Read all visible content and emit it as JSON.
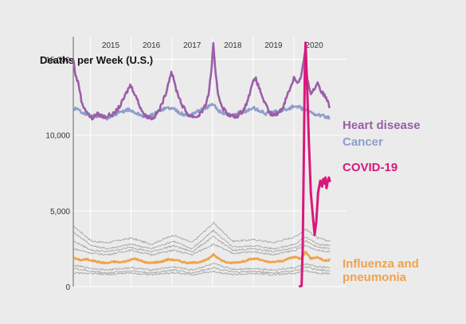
{
  "chart_data": {
    "type": "line",
    "title": "",
    "ylabel": "Deaths per Week (U.S.)",
    "xlabel": "",
    "x_range": [
      "2014-08-01",
      "2020-12-31"
    ],
    "ylim": [
      0,
      16500
    ],
    "year_ticks": [
      "2015",
      "2016",
      "2017",
      "2018",
      "2019",
      "2020"
    ],
    "y_ticks": [
      {
        "value": 0,
        "label": "0"
      },
      {
        "value": 5000,
        "label": "5,000"
      },
      {
        "value": 10000,
        "label": "10,000"
      },
      {
        "value": 15000,
        "label": "15,000"
      }
    ],
    "grid": true,
    "series": [
      {
        "name": "Heart disease",
        "color": "#9b5ea8",
        "points": [
          [
            "2014-08-01",
            15000
          ],
          [
            "2014-08-20",
            14000
          ],
          [
            "2014-09-20",
            13300
          ],
          [
            "2014-10-20",
            12000
          ],
          [
            "2014-11-20",
            11700
          ],
          [
            "2014-12-20",
            11300
          ],
          [
            "2015-01-15",
            11100
          ],
          [
            "2015-03-01",
            11400
          ],
          [
            "2015-05-01",
            11200
          ],
          [
            "2015-08-01",
            11400
          ],
          [
            "2015-10-01",
            12000
          ],
          [
            "2015-11-15",
            12700
          ],
          [
            "2015-12-25",
            13300
          ],
          [
            "2016-02-01",
            12800
          ],
          [
            "2016-03-15",
            12000
          ],
          [
            "2016-05-01",
            11300
          ],
          [
            "2016-07-15",
            11100
          ],
          [
            "2016-09-15",
            11700
          ],
          [
            "2016-11-01",
            12600
          ],
          [
            "2016-12-28",
            14200
          ],
          [
            "2017-02-10",
            13000
          ],
          [
            "2017-04-01",
            12000
          ],
          [
            "2017-06-01",
            11300
          ],
          [
            "2017-08-15",
            11200
          ],
          [
            "2017-10-15",
            11700
          ],
          [
            "2017-11-25",
            12600
          ],
          [
            "2017-12-25",
            14500
          ],
          [
            "2018-01-08",
            16000
          ],
          [
            "2018-01-25",
            14300
          ],
          [
            "2018-02-20",
            12700
          ],
          [
            "2018-04-01",
            11800
          ],
          [
            "2018-06-01",
            11300
          ],
          [
            "2018-08-01",
            11200
          ],
          [
            "2018-10-01",
            11600
          ],
          [
            "2018-11-15",
            12300
          ],
          [
            "2018-12-20",
            13400
          ],
          [
            "2019-01-25",
            13700
          ],
          [
            "2019-03-01",
            13000
          ],
          [
            "2019-04-15",
            12100
          ],
          [
            "2019-06-01",
            11400
          ],
          [
            "2019-07-15",
            11300
          ],
          [
            "2019-09-15",
            11700
          ],
          [
            "2019-11-01",
            12600
          ],
          [
            "2019-12-15",
            13400
          ],
          [
            "2020-01-01",
            13800
          ],
          [
            "2020-02-01",
            13500
          ],
          [
            "2020-03-01",
            13700
          ],
          [
            "2020-04-10",
            15400
          ],
          [
            "2020-05-01",
            13600
          ],
          [
            "2020-06-01",
            12800
          ],
          [
            "2020-07-01",
            13000
          ],
          [
            "2020-08-01",
            13500
          ],
          [
            "2020-09-01",
            12900
          ],
          [
            "2020-10-01",
            12600
          ],
          [
            "2020-11-01",
            12300
          ],
          [
            "2020-11-20",
            11800
          ]
        ]
      },
      {
        "name": "Cancer",
        "color": "#8f9dcc",
        "points": [
          [
            "2014-08-01",
            11800
          ],
          [
            "2014-10-01",
            11600
          ],
          [
            "2014-12-01",
            11400
          ],
          [
            "2015-02-01",
            11200
          ],
          [
            "2015-04-01",
            11300
          ],
          [
            "2015-06-01",
            11100
          ],
          [
            "2015-08-01",
            11300
          ],
          [
            "2015-10-01",
            11500
          ],
          [
            "2015-12-01",
            11700
          ],
          [
            "2016-02-01",
            11500
          ],
          [
            "2016-04-01",
            11300
          ],
          [
            "2016-06-01",
            11200
          ],
          [
            "2016-08-01",
            11400
          ],
          [
            "2016-10-01",
            11700
          ],
          [
            "2016-12-01",
            11800
          ],
          [
            "2017-02-01",
            11700
          ],
          [
            "2017-04-01",
            11400
          ],
          [
            "2017-06-01",
            11300
          ],
          [
            "2017-08-01",
            11500
          ],
          [
            "2017-10-01",
            11700
          ],
          [
            "2017-12-01",
            11900
          ],
          [
            "2018-01-10",
            12000
          ],
          [
            "2018-03-01",
            11600
          ],
          [
            "2018-05-01",
            11400
          ],
          [
            "2018-07-01",
            11300
          ],
          [
            "2018-09-01",
            11500
          ],
          [
            "2018-11-01",
            11600
          ],
          [
            "2019-01-01",
            11800
          ],
          [
            "2019-03-01",
            11600
          ],
          [
            "2019-05-01",
            11400
          ],
          [
            "2019-07-01",
            11500
          ],
          [
            "2019-09-01",
            11600
          ],
          [
            "2019-11-01",
            11700
          ],
          [
            "2020-01-01",
            11900
          ],
          [
            "2020-03-01",
            11800
          ],
          [
            "2020-05-01",
            11600
          ],
          [
            "2020-07-01",
            11400
          ],
          [
            "2020-09-01",
            11300
          ],
          [
            "2020-11-20",
            11100
          ]
        ]
      },
      {
        "name": "COVID-19",
        "color": "#d9187c",
        "points": [
          [
            "2020-02-15",
            0
          ],
          [
            "2020-03-10",
            50
          ],
          [
            "2020-03-20",
            2500
          ],
          [
            "2020-03-30",
            8500
          ],
          [
            "2020-04-08",
            14000
          ],
          [
            "2020-04-15",
            16100
          ],
          [
            "2020-04-28",
            13500
          ],
          [
            "2020-05-15",
            9500
          ],
          [
            "2020-06-01",
            6200
          ],
          [
            "2020-06-25",
            4200
          ],
          [
            "2020-07-05",
            3400
          ],
          [
            "2020-07-20",
            4300
          ],
          [
            "2020-08-05",
            6200
          ],
          [
            "2020-08-25",
            7000
          ],
          [
            "2020-09-10",
            6600
          ],
          [
            "2020-09-20",
            7100
          ],
          [
            "2020-10-01",
            6800
          ],
          [
            "2020-10-10",
            7200
          ],
          [
            "2020-10-20",
            6500
          ],
          [
            "2020-11-01",
            7000
          ],
          [
            "2020-11-10",
            7200
          ],
          [
            "2020-11-20",
            6900
          ]
        ]
      },
      {
        "name": "Influenza and pneumonia",
        "color": "#f0a24a",
        "points": [
          [
            "2014-08-01",
            1900
          ],
          [
            "2014-10-01",
            1750
          ],
          [
            "2014-12-01",
            1800
          ],
          [
            "2015-02-01",
            1700
          ],
          [
            "2015-04-01",
            1600
          ],
          [
            "2015-06-01",
            1550
          ],
          [
            "2015-08-01",
            1650
          ],
          [
            "2015-10-01",
            1600
          ],
          [
            "2015-12-01",
            1700
          ],
          [
            "2016-02-01",
            1850
          ],
          [
            "2016-04-01",
            1700
          ],
          [
            "2016-06-01",
            1550
          ],
          [
            "2016-08-01",
            1600
          ],
          [
            "2016-10-01",
            1650
          ],
          [
            "2016-12-01",
            1800
          ],
          [
            "2017-02-01",
            1750
          ],
          [
            "2017-04-01",
            1650
          ],
          [
            "2017-06-01",
            1550
          ],
          [
            "2017-08-01",
            1600
          ],
          [
            "2017-10-01",
            1650
          ],
          [
            "2017-12-01",
            1850
          ],
          [
            "2018-01-10",
            2150
          ],
          [
            "2018-02-15",
            1900
          ],
          [
            "2018-04-01",
            1700
          ],
          [
            "2018-06-01",
            1550
          ],
          [
            "2018-08-01",
            1600
          ],
          [
            "2018-10-01",
            1650
          ],
          [
            "2018-12-01",
            1800
          ],
          [
            "2019-02-01",
            1850
          ],
          [
            "2019-04-01",
            1700
          ],
          [
            "2019-06-01",
            1600
          ],
          [
            "2019-08-01",
            1650
          ],
          [
            "2019-10-01",
            1700
          ],
          [
            "2019-12-01",
            1900
          ],
          [
            "2020-01-15",
            1950
          ],
          [
            "2020-03-01",
            1850
          ],
          [
            "2020-04-15",
            2300
          ],
          [
            "2020-06-01",
            1850
          ],
          [
            "2020-08-01",
            1950
          ],
          [
            "2020-10-01",
            1700
          ],
          [
            "2020-11-20",
            1750
          ]
        ]
      }
    ],
    "background_series": [
      {
        "color": "#a0a0a0",
        "points": [
          [
            "2014-08-01",
            4000
          ],
          [
            "2015-01-15",
            3000
          ],
          [
            "2015-06-01",
            2900
          ],
          [
            "2016-01-01",
            3200
          ],
          [
            "2016-07-01",
            2800
          ],
          [
            "2017-01-15",
            3400
          ],
          [
            "2017-07-01",
            2900
          ],
          [
            "2018-01-10",
            4200
          ],
          [
            "2018-07-01",
            3000
          ],
          [
            "2019-01-15",
            3100
          ],
          [
            "2019-07-01",
            2900
          ],
          [
            "2020-01-15",
            3300
          ],
          [
            "2020-04-15",
            3800
          ],
          [
            "2020-08-01",
            3200
          ],
          [
            "2020-11-20",
            3000
          ]
        ]
      },
      {
        "color": "#a0a0a0",
        "points": [
          [
            "2014-08-01",
            3600
          ],
          [
            "2015-01-15",
            2700
          ],
          [
            "2015-06-01",
            2500
          ],
          [
            "2016-01-01",
            2800
          ],
          [
            "2016-07-01",
            2500
          ],
          [
            "2017-01-15",
            3000
          ],
          [
            "2017-07-01",
            2500
          ],
          [
            "2018-01-10",
            3700
          ],
          [
            "2018-07-01",
            2600
          ],
          [
            "2019-01-15",
            2700
          ],
          [
            "2019-07-01",
            2500
          ],
          [
            "2020-01-15",
            2800
          ],
          [
            "2020-04-15",
            3300
          ],
          [
            "2020-08-01",
            2800
          ],
          [
            "2020-11-20",
            2700
          ]
        ]
      },
      {
        "color": "#a0a0a0",
        "points": [
          [
            "2014-08-01",
            3000
          ],
          [
            "2015-01-15",
            2400
          ],
          [
            "2015-06-01",
            2300
          ],
          [
            "2016-01-01",
            2600
          ],
          [
            "2016-07-01",
            2300
          ],
          [
            "2017-01-15",
            2700
          ],
          [
            "2017-07-01",
            2300
          ],
          [
            "2018-01-10",
            3300
          ],
          [
            "2018-07-01",
            2400
          ],
          [
            "2019-01-15",
            2500
          ],
          [
            "2019-07-01",
            2300
          ],
          [
            "2020-01-15",
            2600
          ],
          [
            "2020-04-15",
            3000
          ],
          [
            "2020-08-01",
            2600
          ],
          [
            "2020-11-20",
            2500
          ]
        ]
      },
      {
        "color": "#a0a0a0",
        "points": [
          [
            "2014-08-01",
            2500
          ],
          [
            "2015-01-15",
            2200
          ],
          [
            "2015-06-01",
            2100
          ],
          [
            "2016-01-01",
            2400
          ],
          [
            "2016-07-01",
            2100
          ],
          [
            "2017-01-15",
            2400
          ],
          [
            "2017-07-01",
            2100
          ],
          [
            "2018-01-10",
            2800
          ],
          [
            "2018-07-01",
            2200
          ],
          [
            "2019-01-15",
            2300
          ],
          [
            "2019-07-01",
            2100
          ],
          [
            "2020-01-15",
            2400
          ],
          [
            "2020-04-15",
            2700
          ],
          [
            "2020-08-01",
            2400
          ],
          [
            "2020-11-20",
            2300
          ]
        ]
      },
      {
        "color": "#a0a0a0",
        "points": [
          [
            "2014-08-01",
            1400
          ],
          [
            "2015-01-15",
            1200
          ],
          [
            "2015-06-01",
            1100
          ],
          [
            "2016-01-01",
            1250
          ],
          [
            "2016-07-01",
            1100
          ],
          [
            "2017-01-15",
            1300
          ],
          [
            "2017-07-01",
            1100
          ],
          [
            "2018-01-10",
            1500
          ],
          [
            "2018-07-01",
            1150
          ],
          [
            "2019-01-15",
            1200
          ],
          [
            "2019-07-01",
            1100
          ],
          [
            "2020-01-15",
            1250
          ],
          [
            "2020-04-15",
            1500
          ],
          [
            "2020-08-01",
            1300
          ],
          [
            "2020-11-20",
            1250
          ]
        ]
      },
      {
        "color": "#a0a0a0",
        "points": [
          [
            "2014-08-01",
            1200
          ],
          [
            "2015-01-15",
            1000
          ],
          [
            "2015-06-01",
            900
          ],
          [
            "2016-01-01",
            1050
          ],
          [
            "2016-07-01",
            900
          ],
          [
            "2017-01-15",
            1100
          ],
          [
            "2017-07-01",
            900
          ],
          [
            "2018-01-10",
            1250
          ],
          [
            "2018-07-01",
            950
          ],
          [
            "2019-01-15",
            1000
          ],
          [
            "2019-07-01",
            900
          ],
          [
            "2020-01-15",
            1050
          ],
          [
            "2020-04-15",
            1300
          ],
          [
            "2020-08-01",
            1100
          ],
          [
            "2020-11-20",
            1050
          ]
        ]
      },
      {
        "color": "#a0a0a0",
        "points": [
          [
            "2014-08-01",
            900
          ],
          [
            "2015-01-15",
            850
          ],
          [
            "2015-06-01",
            800
          ],
          [
            "2016-01-01",
            900
          ],
          [
            "2016-07-01",
            780
          ],
          [
            "2017-01-15",
            920
          ],
          [
            "2017-07-01",
            790
          ],
          [
            "2018-01-10",
            1000
          ],
          [
            "2018-07-01",
            800
          ],
          [
            "2019-01-15",
            850
          ],
          [
            "2019-07-01",
            780
          ],
          [
            "2020-01-15",
            880
          ],
          [
            "2020-04-15",
            1050
          ],
          [
            "2020-08-01",
            900
          ],
          [
            "2020-11-20",
            860
          ]
        ]
      }
    ],
    "labels": {
      "heart": "Heart disease",
      "cancer": "Cancer",
      "covid": "COVID-19",
      "flu_line1": "Influenza and",
      "flu_line2": "pneumonia"
    }
  }
}
